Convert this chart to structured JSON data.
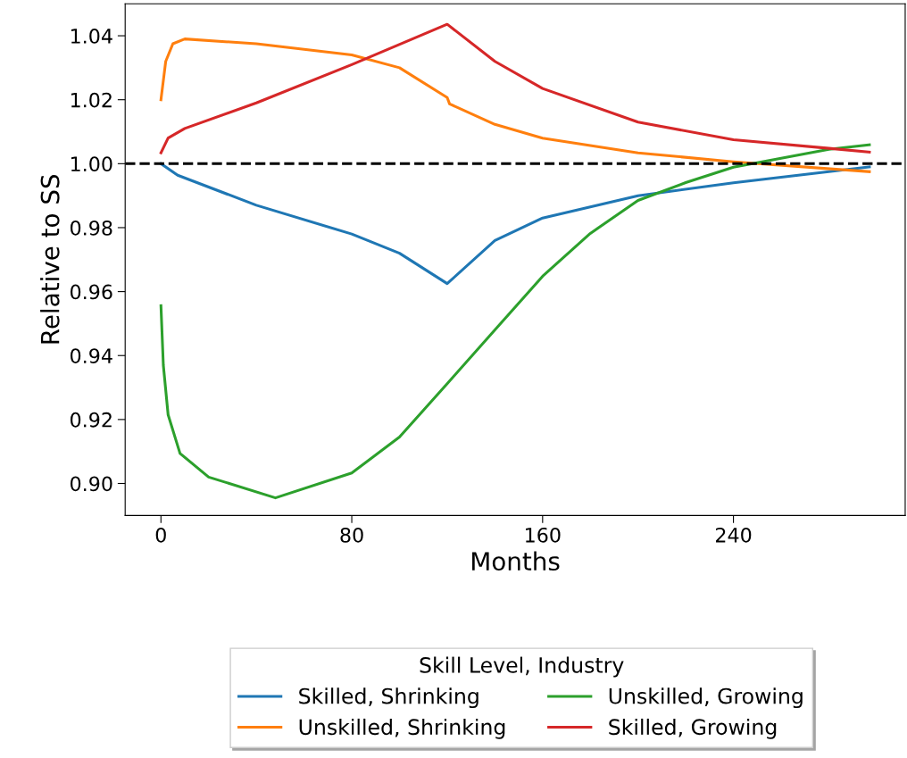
{
  "chart_data": {
    "type": "line",
    "xlabel": "Months",
    "ylabel": "Relative to SS",
    "legend_title": "Skill Level, Industry",
    "legend": "bottom",
    "xlim": [
      -15,
      312
    ],
    "xticks": [
      0,
      80,
      160,
      240
    ],
    "ylim": [
      0.89,
      1.05
    ],
    "yticks": [
      {
        "value": 0.9,
        "label": "0.90"
      },
      {
        "value": 0.92,
        "label": "0.92"
      },
      {
        "value": 0.94,
        "label": "0.94"
      },
      {
        "value": 0.96,
        "label": "0.96"
      },
      {
        "value": 0.98,
        "label": "0.98"
      },
      {
        "value": 1.0,
        "label": "1.00"
      },
      {
        "value": 1.02,
        "label": "1.02"
      },
      {
        "value": 1.04,
        "label": "1.04"
      }
    ],
    "grid": false,
    "ref_lines": [
      {
        "axis": "y",
        "value": 1.0,
        "color": "#000000",
        "line_style": "dashed"
      }
    ],
    "series": [
      {
        "name": "Skilled, Shrinking",
        "color": "#1f77b4",
        "x": [
          0,
          7,
          40,
          80,
          100,
          120,
          140,
          160,
          200,
          240,
          280,
          297
        ],
        "values": [
          1.0,
          0.9964,
          0.987,
          0.978,
          0.972,
          0.9625,
          0.976,
          0.983,
          0.99,
          0.994,
          0.9975,
          0.999
        ]
      },
      {
        "name": "Unskilled, Shrinking",
        "color": "#ff7f0e",
        "x": [
          0,
          2,
          5,
          10,
          40,
          80,
          100,
          120,
          121,
          140,
          160,
          200,
          240,
          297
        ],
        "values": [
          1.02,
          1.032,
          1.0375,
          1.039,
          1.0375,
          1.034,
          1.03,
          1.0207,
          1.0187,
          1.0123,
          1.008,
          1.0034,
          1.0006,
          0.9975
        ]
      },
      {
        "name": "Unskilled, Growing",
        "color": "#2ca02c",
        "x": [
          0,
          1,
          3,
          8,
          20,
          48,
          80,
          100,
          120,
          140,
          160,
          180,
          200,
          220,
          240,
          280,
          297
        ],
        "values": [
          0.9556,
          0.937,
          0.9215,
          0.9094,
          0.902,
          0.8955,
          0.9033,
          0.9145,
          0.9312,
          0.948,
          0.9648,
          0.9782,
          0.9885,
          0.9941,
          0.9989,
          1.0045,
          1.0059
        ]
      },
      {
        "name": "Skilled, Growing",
        "color": "#d62728",
        "x": [
          0,
          3,
          10,
          40,
          80,
          120,
          140,
          160,
          200,
          240,
          280,
          297
        ],
        "values": [
          1.0034,
          1.008,
          1.011,
          1.019,
          1.031,
          1.0436,
          1.032,
          1.0235,
          1.013,
          1.0075,
          1.0048,
          1.0036
        ]
      }
    ]
  }
}
